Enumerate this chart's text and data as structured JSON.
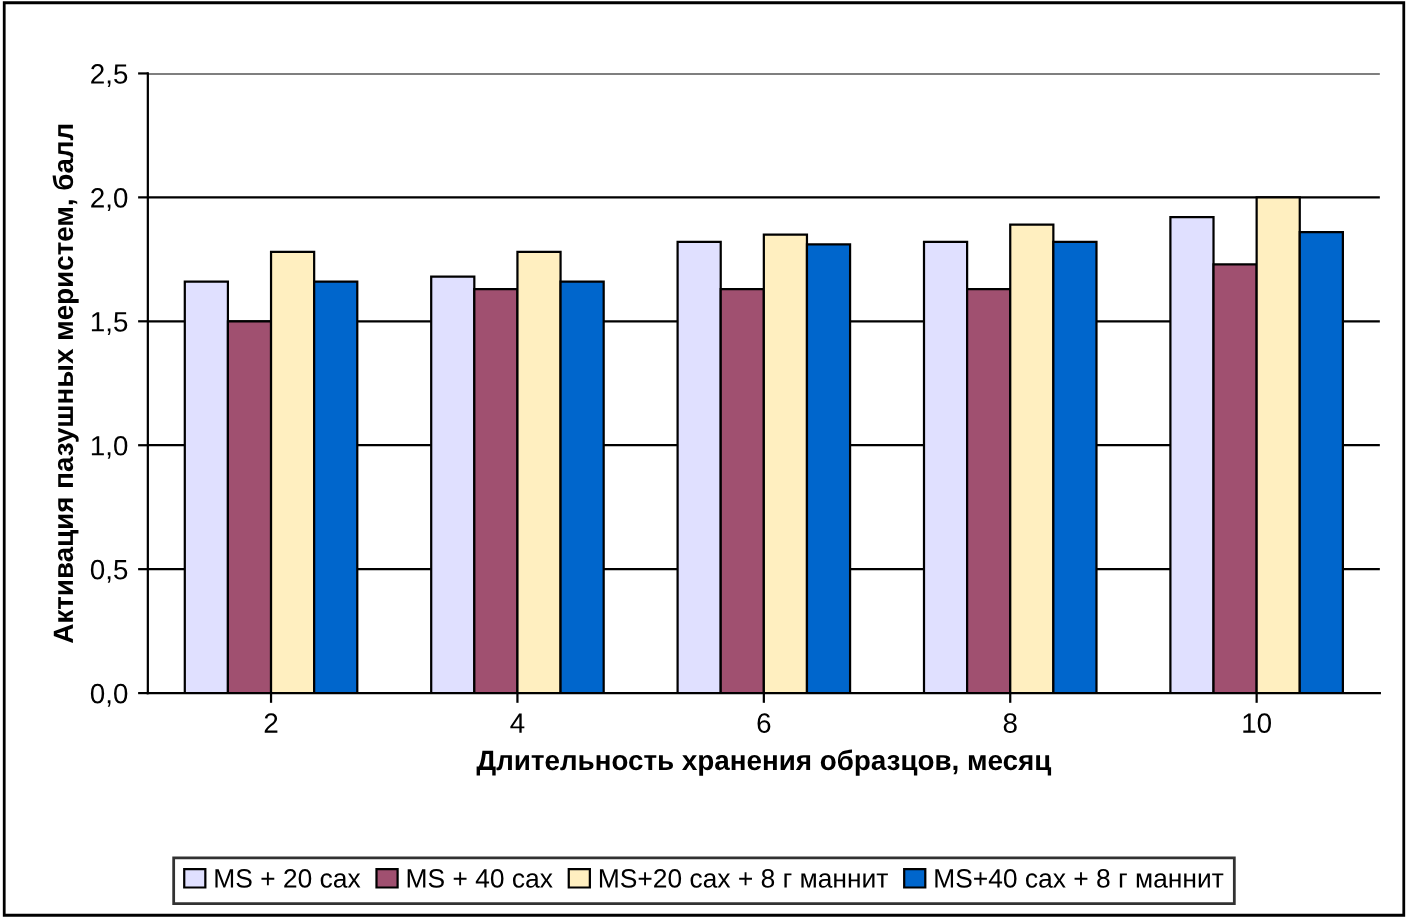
{
  "chart_data": {
    "type": "bar",
    "xlabel": "Длительность хранения образцов, месяц",
    "ylabel": "Активация пазушных меристем, балл",
    "categories": [
      "2",
      "4",
      "6",
      "8",
      "10"
    ],
    "series": [
      {
        "name": "MS + 20 сах",
        "color": "#e0e0ff",
        "values": [
          1.66,
          1.68,
          1.82,
          1.82,
          1.92
        ]
      },
      {
        "name": "MS + 40 сах",
        "color": "#a05070",
        "values": [
          1.5,
          1.63,
          1.63,
          1.63,
          1.73
        ]
      },
      {
        "name": "MS+20 сах + 8 г маннит",
        "color": "#ffefc0",
        "values": [
          1.78,
          1.78,
          1.85,
          1.89,
          2.0
        ]
      },
      {
        "name": "MS+40 сах + 8 г маннит",
        "color": "#0066cc",
        "values": [
          1.66,
          1.66,
          1.81,
          1.82,
          1.86
        ]
      }
    ],
    "ylim": [
      0,
      2.5
    ],
    "yticks": [
      {
        "value": 0,
        "label": "0,0"
      },
      {
        "value": 0.5,
        "label": "0,5"
      },
      {
        "value": 1,
        "label": "1,0"
      },
      {
        "value": 1.5,
        "label": "1,5"
      },
      {
        "value": 2,
        "label": "2,0"
      },
      {
        "value": 2.5,
        "label": "2,5"
      }
    ],
    "grid": "y",
    "legend": "bottom"
  }
}
